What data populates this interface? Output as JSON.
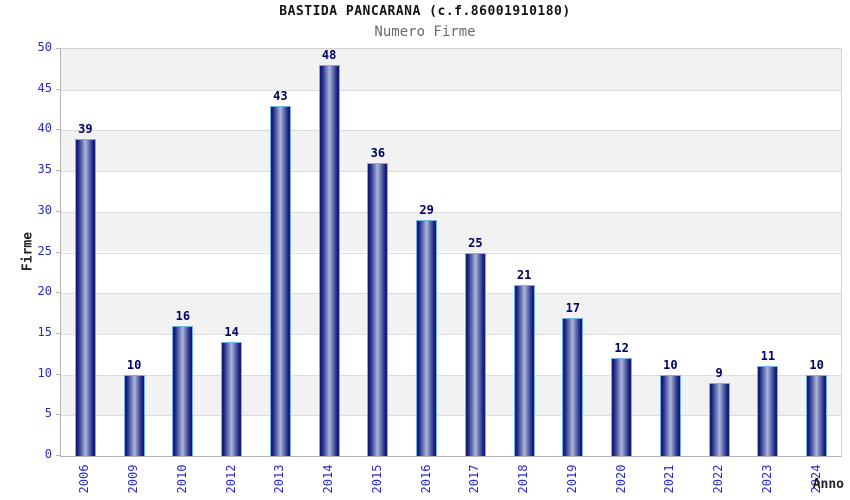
{
  "header": {
    "title": "BASTIDA PANCARANA (c.f.86001910180)",
    "subtitle": "Numero Firme"
  },
  "chart_data": {
    "type": "bar",
    "title": "BASTIDA PANCARANA (c.f.86001910180)",
    "subtitle": "Numero Firme",
    "xlabel": "Anno",
    "ylabel": "Firme",
    "categories": [
      "2006",
      "2009",
      "2010",
      "2012",
      "2013",
      "2014",
      "2015",
      "2016",
      "2017",
      "2018",
      "2019",
      "2020",
      "2021",
      "2022",
      "2023",
      "2024"
    ],
    "values": [
      39,
      10,
      16,
      14,
      43,
      48,
      36,
      29,
      25,
      21,
      17,
      12,
      10,
      9,
      11,
      10
    ],
    "ylim": [
      0,
      50
    ],
    "ytick_step": 5,
    "grid": "horizontal-bands-alternating",
    "legend": "none",
    "colors": {
      "bar_dark": "#151c7e",
      "bar_mid": "#5f6cab",
      "bar_light": "#aeb6de",
      "bar_border": "#74b2e4",
      "tick_label": "#2a2acc",
      "value_label": "#000066",
      "band_gray": "#f2f2f2",
      "band_white": "#ffffff",
      "gridline": "#dcdcdc",
      "axis": "#b3b3b3",
      "title": "#131313",
      "subtitle": "#6b6b6b",
      "axis_title": "#222222"
    }
  }
}
